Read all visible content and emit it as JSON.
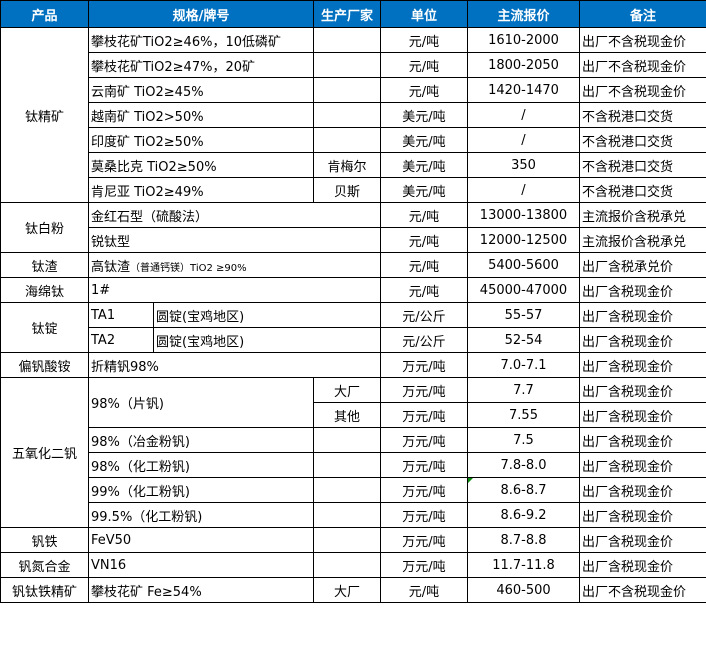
{
  "header": {
    "product": "产品",
    "spec": "规格/牌号",
    "vendor": "生产厂家",
    "unit": "单位",
    "price": "主流报价",
    "note": "备注"
  },
  "groups": {
    "ti_conc": {
      "name": "钛精矿",
      "rows": [
        {
          "spec": "攀枝花矿TiO2≥46%，10低磷矿",
          "vendor": "",
          "unit": "元/吨",
          "price": "1610-2000",
          "note": "出厂不含税现金价"
        },
        {
          "spec": "攀枝花矿TiO2≥47%，20矿",
          "vendor": "",
          "unit": "元/吨",
          "price": "1800-2050",
          "note": "出厂不含税现金价"
        },
        {
          "spec": "云南矿 TiO2≥45%",
          "vendor": "",
          "unit": "元/吨",
          "price": "1420-1470",
          "note": "出厂不含税现金价"
        },
        {
          "spec": "越南矿 TiO2>50%",
          "vendor": "",
          "unit": "美元/吨",
          "price": "/",
          "note": "不含税港口交货"
        },
        {
          "spec": "印度矿 TiO2≥50%",
          "vendor": "",
          "unit": "美元/吨",
          "price": "/",
          "note": "不含税港口交货"
        },
        {
          "spec": "莫桑比克 TiO2≥50%",
          "vendor": "肯梅尔",
          "unit": "美元/吨",
          "price": "350",
          "note": "不含税港口交货"
        },
        {
          "spec": "肯尼亚 TiO2≥49%",
          "vendor": "贝斯",
          "unit": "美元/吨",
          "price": "/",
          "note": "不含税港口交货"
        }
      ]
    },
    "tio2": {
      "name": "钛白粉",
      "rows": [
        {
          "spec": "金红石型（硫酸法）",
          "unit": "元/吨",
          "price": "13000-13800",
          "note": "主流报价含税承兑"
        },
        {
          "spec": "锐钛型",
          "unit": "元/吨",
          "price": "12000-12500",
          "note": "主流报价含税承兑"
        }
      ]
    },
    "slag": {
      "name": "钛渣",
      "rows": [
        {
          "spec": "高钛渣",
          "spec_small": "（普通钙镁）TiO2 ≥90%",
          "unit": "元/吨",
          "price": "5400-5600",
          "note": "出厂含税承兑价"
        }
      ]
    },
    "sponge": {
      "name": "海绵钛",
      "rows": [
        {
          "spec": "1#",
          "unit": "元/吨",
          "price": "45000-47000",
          "note": "出厂含税现金价"
        }
      ]
    },
    "ingot": {
      "name": "钛锭",
      "rows": [
        {
          "grade": "TA1",
          "spec": "圆锭(宝鸡地区)",
          "unit": "元/公斤",
          "price": "55-57",
          "note": "出厂含税现金价"
        },
        {
          "grade": "TA2",
          "spec": "圆锭(宝鸡地区)",
          "unit": "元/公斤",
          "price": "52-54",
          "note": "出厂含税现金价"
        }
      ]
    },
    "amv": {
      "name": "偏钒酸铵",
      "rows": [
        {
          "spec": "折精钒98%",
          "unit": "万元/吨",
          "price": "7.0-7.1",
          "note": "出厂含税现金价"
        }
      ]
    },
    "v2o5": {
      "name": "五氧化二钒",
      "rows": [
        {
          "spec": "98%（片钒)",
          "vendor": "大厂",
          "unit": "万元/吨",
          "price": "7.7",
          "note": "出厂含税现金价"
        },
        {
          "spec": "",
          "vendor": "其他",
          "unit": "万元/吨",
          "price": "7.55",
          "note": "出厂含税现金价"
        },
        {
          "spec": "98%（冶金粉钒)",
          "vendor": "",
          "unit": "万元/吨",
          "price": "7.5",
          "note": "出厂含税现金价"
        },
        {
          "spec": "98%（化工粉钒)",
          "vendor": "",
          "unit": "万元/吨",
          "price": "7.8-8.0",
          "note": "出厂含税现金价"
        },
        {
          "spec": "99%（化工粉钒)",
          "vendor": "",
          "unit": "万元/吨",
          "price": "8.6-8.7",
          "note": "出厂含税现金价"
        },
        {
          "spec": "99.5%（化工粉钒)",
          "vendor": "",
          "unit": "万元/吨",
          "price": "8.6-9.2",
          "note": "出厂含税现金价"
        }
      ]
    },
    "fev": {
      "name": "钒铁",
      "rows": [
        {
          "spec": "FeV50",
          "vendor": "",
          "unit": "万元/吨",
          "price": "8.7-8.8",
          "note": "出厂含税现金价"
        }
      ]
    },
    "vn": {
      "name": "钒氮合金",
      "rows": [
        {
          "spec": "VN16",
          "vendor": "",
          "unit": "万元/吨",
          "price": "11.7-11.8",
          "note": "出厂含税现金价"
        }
      ]
    },
    "vtm": {
      "name": "钒钛铁精矿",
      "rows": [
        {
          "spec": "攀枝花矿 Fe≥54%",
          "vendor": "大厂",
          "unit": "元/吨",
          "price": "460-500",
          "note": "出厂不含税现金价"
        }
      ]
    }
  },
  "colors": {
    "header_bg": "#0070C0",
    "header_text": "#FFFFFF",
    "comment_marker": "#0A8A0A"
  }
}
